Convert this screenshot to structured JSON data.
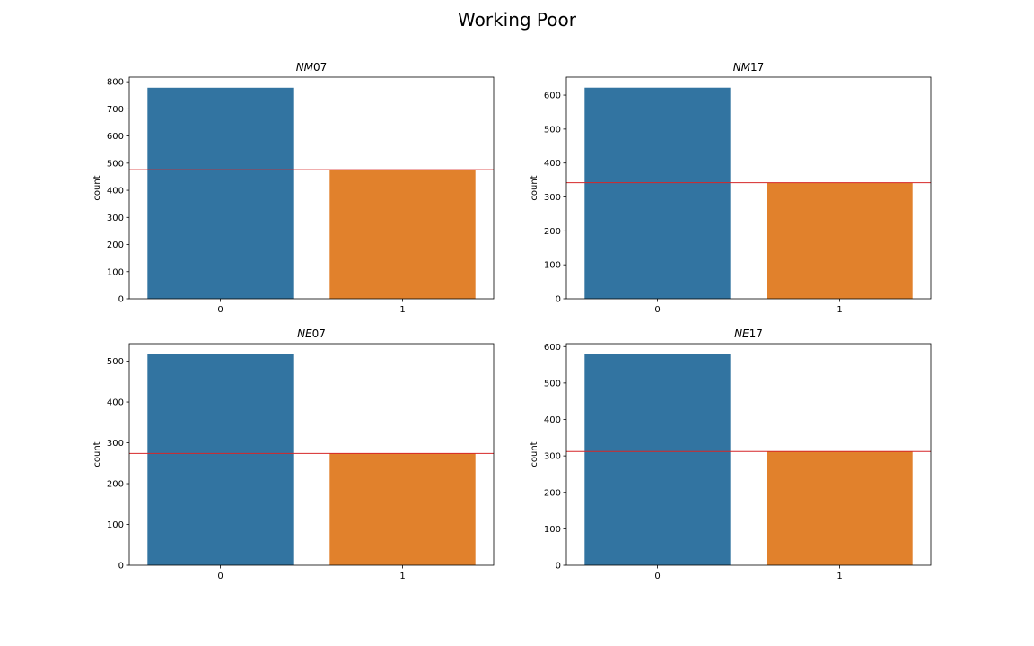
{
  "figure": {
    "title": "Working Poor"
  },
  "chart_data": [
    {
      "type": "bar",
      "title_italic": "NM",
      "title_plain": "07",
      "categories": [
        "0",
        "1"
      ],
      "values": [
        778,
        476
      ],
      "colors": [
        "#3274a1",
        "#e1812c"
      ],
      "ylabel": "count",
      "ylim": [
        0,
        817
      ],
      "yticks": [
        0,
        100,
        200,
        300,
        400,
        500,
        600,
        700,
        800
      ],
      "hline": {
        "value": 476,
        "color": "#d62728"
      }
    },
    {
      "type": "bar",
      "title_italic": "NM",
      "title_plain": "17",
      "categories": [
        "0",
        "1"
      ],
      "values": [
        622,
        342
      ],
      "colors": [
        "#3274a1",
        "#e1812c"
      ],
      "ylabel": "count",
      "ylim": [
        0,
        653
      ],
      "yticks": [
        0,
        100,
        200,
        300,
        400,
        500,
        600
      ],
      "hline": {
        "value": 342,
        "color": "#d62728"
      }
    },
    {
      "type": "bar",
      "title_italic": "NE",
      "title_plain": "07",
      "categories": [
        "0",
        "1"
      ],
      "values": [
        517,
        274
      ],
      "colors": [
        "#3274a1",
        "#e1812c"
      ],
      "ylabel": "count",
      "ylim": [
        0,
        543
      ],
      "yticks": [
        0,
        100,
        200,
        300,
        400,
        500
      ],
      "hline": {
        "value": 274,
        "color": "#d62728"
      }
    },
    {
      "type": "bar",
      "title_italic": "NE",
      "title_plain": "17",
      "categories": [
        "0",
        "1"
      ],
      "values": [
        579,
        312
      ],
      "colors": [
        "#3274a1",
        "#e1812c"
      ],
      "ylabel": "count",
      "ylim": [
        0,
        608
      ],
      "yticks": [
        0,
        100,
        200,
        300,
        400,
        500,
        600
      ],
      "hline": {
        "value": 312,
        "color": "#d62728"
      }
    }
  ]
}
